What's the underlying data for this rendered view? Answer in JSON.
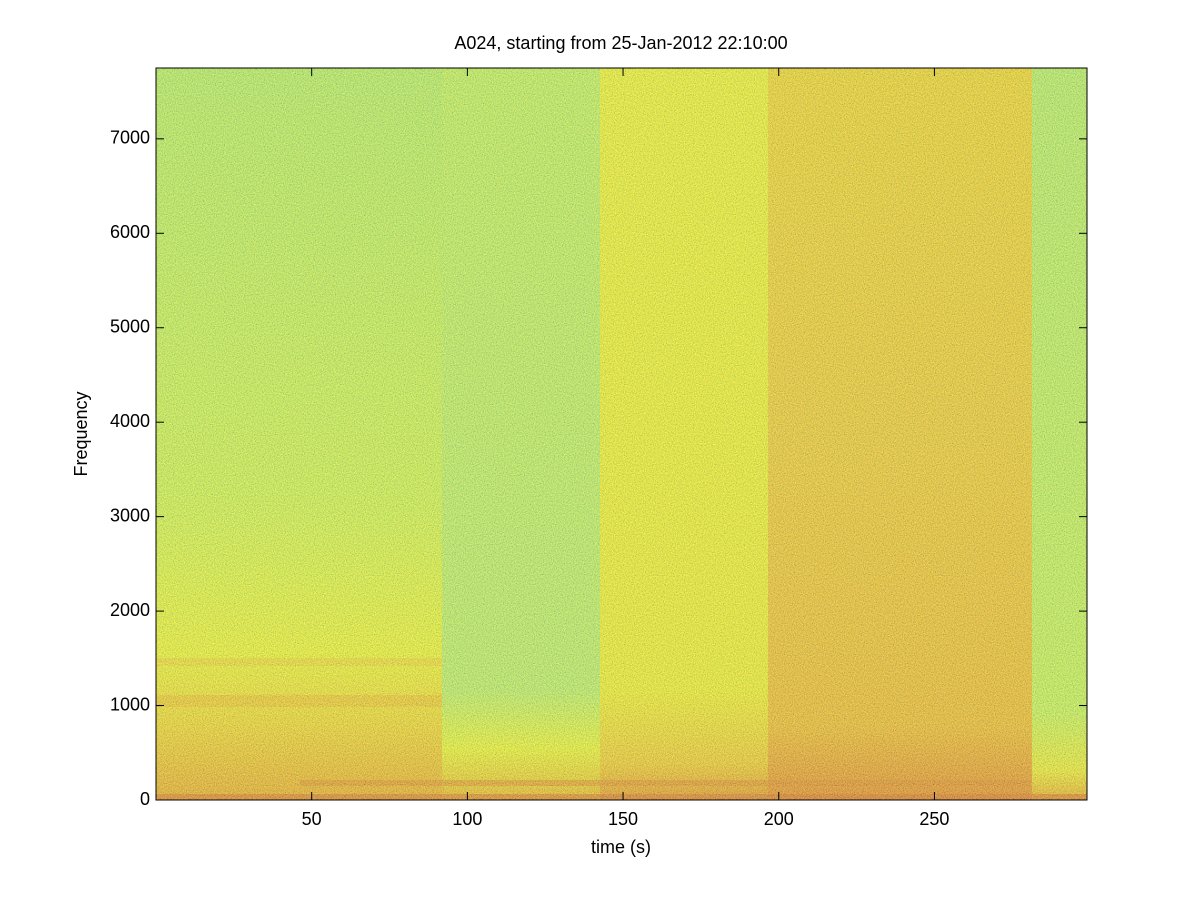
{
  "chart_data": {
    "type": "spectrogram",
    "title": "A024, starting from 25-Jan-2012 22:10:00",
    "x_label": "time (s)",
    "y_label": "Frequency",
    "xlim": [
      0,
      299
    ],
    "xticks": [
      50,
      100,
      150,
      200,
      250
    ],
    "ylim": [
      0,
      7750
    ],
    "yticks": [
      0,
      1000,
      2000,
      3000,
      4000,
      5000,
      6000,
      7000
    ]
  }
}
